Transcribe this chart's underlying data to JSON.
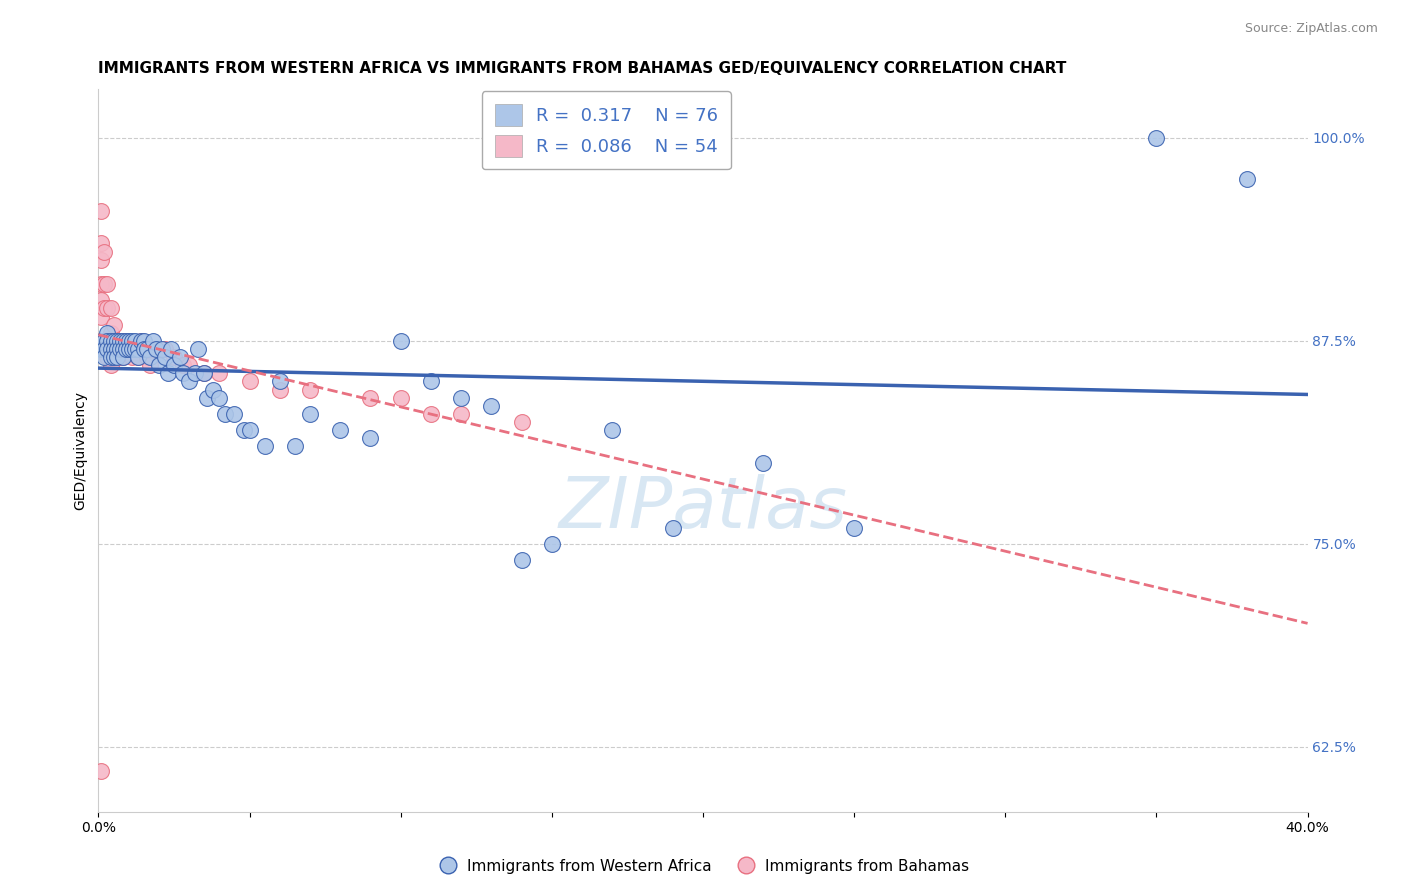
{
  "title": "IMMIGRANTS FROM WESTERN AFRICA VS IMMIGRANTS FROM BAHAMAS GED/EQUIVALENCY CORRELATION CHART",
  "source": "Source: ZipAtlas.com",
  "ylabel": "GED/Equivalency",
  "right_yticks": [
    0.625,
    0.75,
    0.875,
    1.0
  ],
  "right_yticklabels": [
    "62.5%",
    "75.0%",
    "87.5%",
    "100.0%"
  ],
  "legend_blue_r": "0.317",
  "legend_blue_n": "76",
  "legend_pink_r": "0.086",
  "legend_pink_n": "54",
  "blue_color": "#adc6e8",
  "pink_color": "#f5b8c8",
  "blue_line_color": "#3a62b0",
  "pink_line_color": "#e87080",
  "right_axis_color": "#4472c4",
  "watermark": "ZIPatlas",
  "blue_scatter_x": [
    0.001,
    0.001,
    0.002,
    0.002,
    0.002,
    0.003,
    0.003,
    0.003,
    0.004,
    0.004,
    0.004,
    0.005,
    0.005,
    0.005,
    0.006,
    0.006,
    0.006,
    0.007,
    0.007,
    0.008,
    0.008,
    0.008,
    0.009,
    0.009,
    0.01,
    0.01,
    0.011,
    0.011,
    0.012,
    0.012,
    0.013,
    0.013,
    0.014,
    0.015,
    0.015,
    0.016,
    0.017,
    0.018,
    0.019,
    0.02,
    0.021,
    0.022,
    0.023,
    0.024,
    0.025,
    0.027,
    0.028,
    0.03,
    0.032,
    0.033,
    0.035,
    0.036,
    0.038,
    0.04,
    0.042,
    0.045,
    0.048,
    0.05,
    0.055,
    0.06,
    0.065,
    0.07,
    0.08,
    0.09,
    0.1,
    0.11,
    0.12,
    0.13,
    0.14,
    0.15,
    0.17,
    0.19,
    0.22,
    0.25,
    0.35,
    0.38
  ],
  "blue_scatter_y": [
    0.875,
    0.87,
    0.875,
    0.87,
    0.865,
    0.88,
    0.875,
    0.87,
    0.875,
    0.87,
    0.865,
    0.875,
    0.87,
    0.865,
    0.875,
    0.87,
    0.865,
    0.875,
    0.87,
    0.875,
    0.87,
    0.865,
    0.875,
    0.87,
    0.875,
    0.87,
    0.875,
    0.87,
    0.875,
    0.87,
    0.87,
    0.865,
    0.875,
    0.875,
    0.87,
    0.87,
    0.865,
    0.875,
    0.87,
    0.86,
    0.87,
    0.865,
    0.855,
    0.87,
    0.86,
    0.865,
    0.855,
    0.85,
    0.855,
    0.87,
    0.855,
    0.84,
    0.845,
    0.84,
    0.83,
    0.83,
    0.82,
    0.82,
    0.81,
    0.85,
    0.81,
    0.83,
    0.82,
    0.815,
    0.875,
    0.85,
    0.84,
    0.835,
    0.74,
    0.75,
    0.82,
    0.76,
    0.8,
    0.76,
    1.0,
    0.975
  ],
  "pink_scatter_x": [
    0.001,
    0.001,
    0.001,
    0.001,
    0.001,
    0.001,
    0.001,
    0.002,
    0.002,
    0.002,
    0.002,
    0.003,
    0.003,
    0.003,
    0.003,
    0.004,
    0.004,
    0.004,
    0.004,
    0.005,
    0.005,
    0.005,
    0.006,
    0.006,
    0.007,
    0.007,
    0.008,
    0.008,
    0.009,
    0.01,
    0.011,
    0.012,
    0.013,
    0.014,
    0.015,
    0.016,
    0.017,
    0.018,
    0.02,
    0.022,
    0.025,
    0.028,
    0.03,
    0.035,
    0.04,
    0.05,
    0.06,
    0.07,
    0.09,
    0.1,
    0.11,
    0.12,
    0.14,
    0.001
  ],
  "pink_scatter_y": [
    0.955,
    0.935,
    0.925,
    0.91,
    0.9,
    0.89,
    0.875,
    0.93,
    0.91,
    0.895,
    0.875,
    0.91,
    0.895,
    0.875,
    0.865,
    0.895,
    0.88,
    0.87,
    0.86,
    0.885,
    0.875,
    0.865,
    0.875,
    0.865,
    0.875,
    0.865,
    0.875,
    0.865,
    0.875,
    0.87,
    0.865,
    0.87,
    0.865,
    0.875,
    0.87,
    0.865,
    0.86,
    0.87,
    0.87,
    0.87,
    0.865,
    0.86,
    0.86,
    0.855,
    0.855,
    0.85,
    0.845,
    0.845,
    0.84,
    0.84,
    0.83,
    0.83,
    0.825,
    0.61
  ],
  "xmin": 0.0,
  "xmax": 0.4,
  "ymin": 0.585,
  "ymax": 1.03,
  "grid_color": "#cccccc",
  "background_color": "#ffffff",
  "title_fontsize": 11,
  "axis_label_fontsize": 10,
  "tick_fontsize": 10,
  "legend_fontsize": 13,
  "watermark_fontsize": 52
}
